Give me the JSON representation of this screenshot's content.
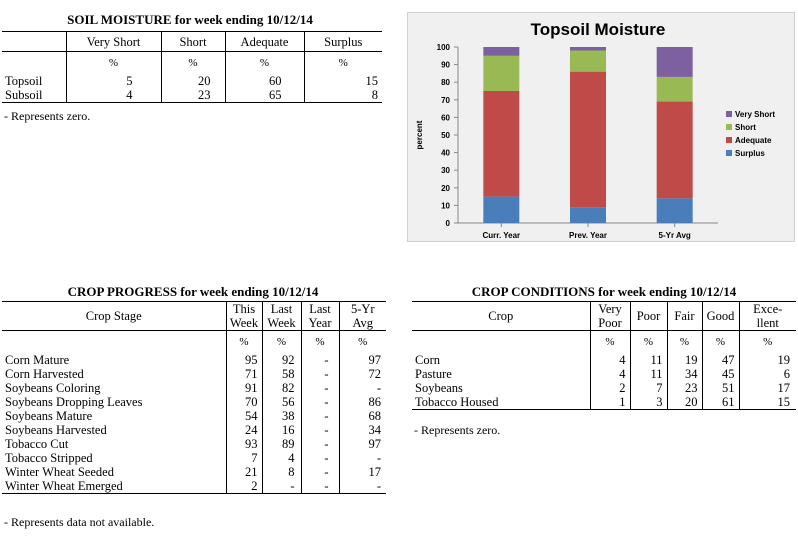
{
  "soil": {
    "title": "SOIL MOISTURE for week ending 10/12/14",
    "headers": [
      "Very Short",
      "Short",
      "Adequate",
      "Surplus"
    ],
    "units": [
      "%",
      "%",
      "%",
      "%"
    ],
    "rows": [
      {
        "label": "Topsoil",
        "values": [
          "5",
          "20",
          "60",
          "15"
        ]
      },
      {
        "label": "Subsoil",
        "values": [
          "4",
          "23",
          "65",
          "8"
        ]
      }
    ],
    "note": "- Represents zero."
  },
  "chart_data": {
    "type": "bar",
    "stacked": true,
    "title": "Topsoil Moisture",
    "ylabel": "percent",
    "xlabel": "",
    "ylim": [
      0,
      100
    ],
    "yticks": [
      0,
      10,
      20,
      30,
      40,
      50,
      60,
      70,
      80,
      90,
      100
    ],
    "categories": [
      "Curr. Year",
      "Prev. Year",
      "5-Yr Avg"
    ],
    "series": [
      {
        "name": "Surplus",
        "color": "#4a7ebb",
        "values": [
          15,
          9,
          14
        ]
      },
      {
        "name": "Adequate",
        "color": "#be4b48",
        "values": [
          60,
          77,
          55
        ]
      },
      {
        "name": "Short",
        "color": "#98b954",
        "values": [
          20,
          12,
          14
        ]
      },
      {
        "name": "Very Short",
        "color": "#7d60a0",
        "values": [
          5,
          2,
          17
        ]
      }
    ],
    "legend": [
      "Very Short",
      "Short",
      "Adequate",
      "Surplus"
    ],
    "legend_position": "right",
    "grid": false
  },
  "progress": {
    "title": "CROP PROGRESS for week ending 10/12/14",
    "stage_header": "Crop Stage",
    "col_headers": [
      [
        "This",
        "Week"
      ],
      [
        "Last",
        "Week"
      ],
      [
        "Last",
        "Year"
      ],
      [
        "5-Yr",
        "Avg"
      ]
    ],
    "units": [
      "%",
      "%",
      "%",
      "%"
    ],
    "rows": [
      {
        "label": "Corn Mature",
        "values": [
          "95",
          "92",
          "-",
          "97"
        ]
      },
      {
        "label": "Corn Harvested",
        "values": [
          "71",
          "58",
          "-",
          "72"
        ]
      },
      {
        "label": "Soybeans Coloring",
        "values": [
          "91",
          "82",
          "-",
          "-"
        ]
      },
      {
        "label": "Soybeans Dropping Leaves",
        "values": [
          "70",
          "56",
          "-",
          "86"
        ]
      },
      {
        "label": "Soybeans Mature",
        "values": [
          "54",
          "38",
          "-",
          "68"
        ]
      },
      {
        "label": "Soybeans Harvested",
        "values": [
          "24",
          "16",
          "-",
          "34"
        ]
      },
      {
        "label": "Tobacco Cut",
        "values": [
          "93",
          "89",
          "-",
          "97"
        ]
      },
      {
        "label": "Tobacco Stripped",
        "values": [
          "7",
          "4",
          "-",
          "-"
        ]
      },
      {
        "label": "Winter Wheat Seeded",
        "values": [
          "21",
          "8",
          "-",
          "17"
        ]
      },
      {
        "label": "Winter Wheat Emerged",
        "values": [
          "2",
          "-",
          "-",
          "-"
        ]
      }
    ],
    "note": "- Represents data not available."
  },
  "conditions": {
    "title": "CROP CONDITIONS for week ending 10/12/14",
    "crop_header": "Crop",
    "col_headers": [
      [
        "Very",
        "Poor"
      ],
      [
        "Poor"
      ],
      [
        "Fair"
      ],
      [
        "Good"
      ],
      [
        "Exce-",
        "llent"
      ]
    ],
    "units": [
      "%",
      "%",
      "%",
      "%",
      "%"
    ],
    "rows": [
      {
        "label": "Corn",
        "values": [
          "4",
          "11",
          "19",
          "47",
          "19"
        ]
      },
      {
        "label": "Pasture",
        "values": [
          "4",
          "11",
          "34",
          "45",
          "6"
        ]
      },
      {
        "label": "Soybeans",
        "values": [
          "2",
          "7",
          "23",
          "51",
          "17"
        ]
      },
      {
        "label": "Tobacco Housed",
        "values": [
          "1",
          "3",
          "20",
          "61",
          "15"
        ]
      }
    ],
    "note": "- Represents zero."
  }
}
